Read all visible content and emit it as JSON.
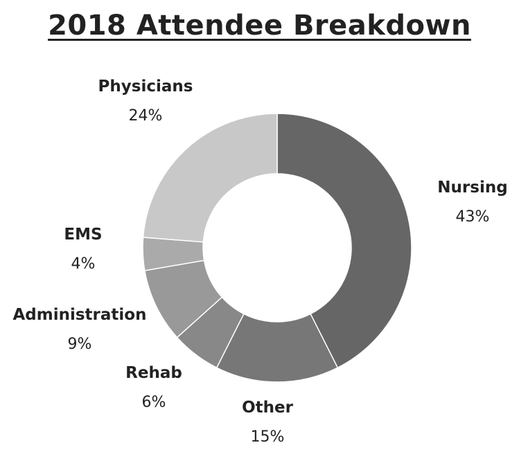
{
  "title": "2018 Attendee Breakdown",
  "chart_data": {
    "type": "pie",
    "title": "2018 Attendee Breakdown",
    "donut": true,
    "categories": [
      "Nursing",
      "Other",
      "Rehab",
      "Administration",
      "EMS",
      "Physicians"
    ],
    "values": [
      43,
      15,
      6,
      9,
      4,
      24
    ],
    "percent_labels": [
      "43%",
      "15%",
      "6%",
      "9%",
      "4%",
      "24%"
    ],
    "colors": [
      "#666666",
      "#777777",
      "#888888",
      "#999999",
      "#aaaaaa",
      "#c8c8c8"
    ],
    "legend": "none"
  }
}
